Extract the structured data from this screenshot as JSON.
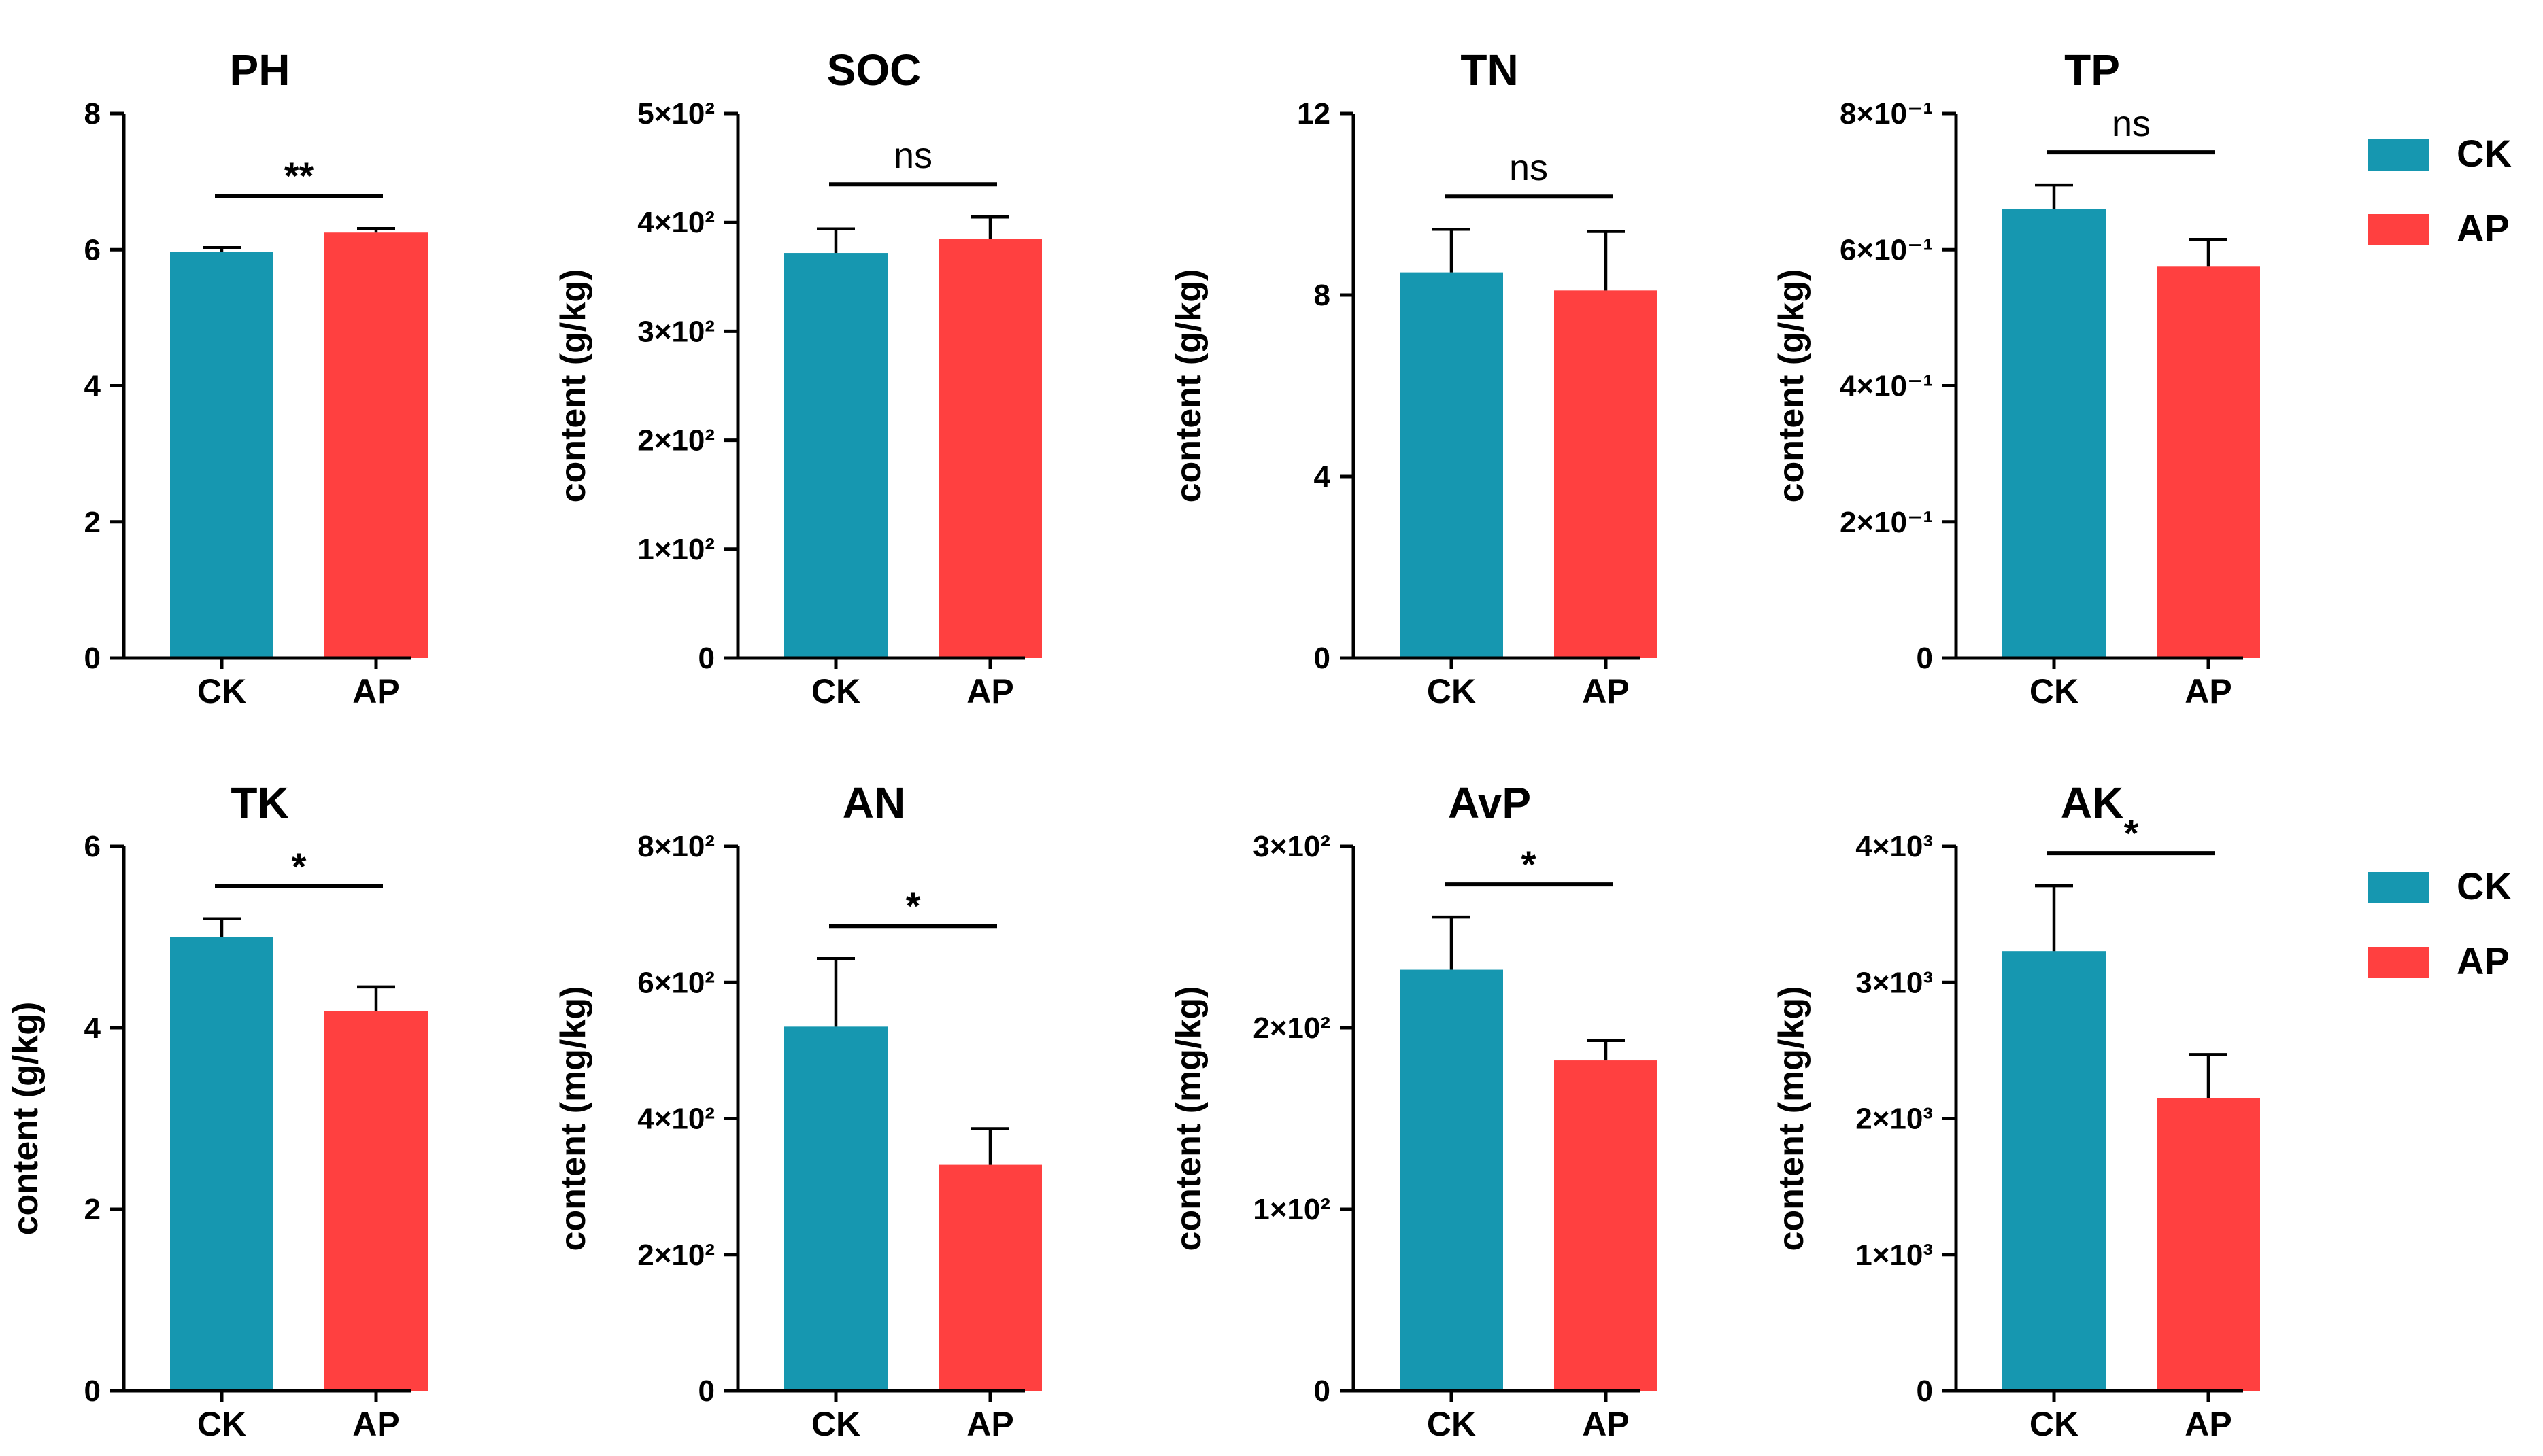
{
  "chart_data": [
    {
      "type": "bar",
      "title": "PH",
      "ylabel": "",
      "categories": [
        "CK",
        "AP"
      ],
      "values": [
        5.97,
        6.25
      ],
      "errors": [
        0.06,
        0.06
      ],
      "ylim": [
        0,
        8
      ],
      "yticks": [
        0,
        2,
        4,
        6,
        8
      ],
      "ytick_labels": [
        "0",
        "2",
        "4",
        "6",
        "8"
      ],
      "significance": "**"
    },
    {
      "type": "bar",
      "title": "SOC",
      "ylabel": "content (g/kg)",
      "categories": [
        "CK",
        "AP"
      ],
      "values": [
        372,
        385
      ],
      "errors": [
        22,
        20
      ],
      "ylim": [
        0,
        500
      ],
      "yticks": [
        0,
        100,
        200,
        300,
        400,
        500
      ],
      "ytick_labels": [
        "0",
        "1×10²",
        "2×10²",
        "3×10²",
        "4×10²",
        "5×10²"
      ],
      "significance": "ns"
    },
    {
      "type": "bar",
      "title": "TN",
      "ylabel": "content (g/kg)",
      "categories": [
        "CK",
        "AP"
      ],
      "values": [
        8.5,
        8.1
      ],
      "errors": [
        0.95,
        1.3
      ],
      "ylim": [
        0,
        12
      ],
      "yticks": [
        0,
        4,
        8,
        12
      ],
      "ytick_labels": [
        "0",
        "4",
        "8",
        "12"
      ],
      "significance": "ns"
    },
    {
      "type": "bar",
      "title": "TP",
      "ylabel": "content (g/kg)",
      "categories": [
        "CK",
        "AP"
      ],
      "values": [
        0.66,
        0.575
      ],
      "errors": [
        0.035,
        0.04
      ],
      "ylim": [
        0,
        0.8
      ],
      "yticks": [
        0,
        0.2,
        0.4,
        0.6,
        0.8
      ],
      "ytick_labels": [
        "0",
        "2×10⁻¹",
        "4×10⁻¹",
        "6×10⁻¹",
        "8×10⁻¹"
      ],
      "significance": "ns"
    },
    {
      "type": "bar",
      "title": "TK",
      "ylabel": "content (g/kg)",
      "categories": [
        "CK",
        "AP"
      ],
      "values": [
        5.0,
        4.18
      ],
      "errors": [
        0.2,
        0.27
      ],
      "ylim": [
        0,
        6
      ],
      "yticks": [
        0,
        2,
        4,
        6
      ],
      "ytick_labels": [
        "0",
        "2",
        "4",
        "6"
      ],
      "significance": "*"
    },
    {
      "type": "bar",
      "title": "AN",
      "ylabel": "content (mg/kg)",
      "categories": [
        "CK",
        "AP"
      ],
      "values": [
        535,
        332
      ],
      "errors": [
        100,
        53
      ],
      "ylim": [
        0,
        800
      ],
      "yticks": [
        0,
        200,
        400,
        600,
        800
      ],
      "ytick_labels": [
        "0",
        "2×10²",
        "4×10²",
        "6×10²",
        "8×10²"
      ],
      "significance": "*"
    },
    {
      "type": "bar",
      "title": "AvP",
      "ylabel": "content (mg/kg)",
      "categories": [
        "CK",
        "AP"
      ],
      "values": [
        232,
        182
      ],
      "errors": [
        29,
        11
      ],
      "ylim": [
        0,
        300
      ],
      "yticks": [
        0,
        100,
        200,
        300
      ],
      "ytick_labels": [
        "0",
        "1×10²",
        "2×10²",
        "3×10²"
      ],
      "significance": "*"
    },
    {
      "type": "bar",
      "title": "AK",
      "ylabel": "content (mg/kg)",
      "categories": [
        "CK",
        "AP"
      ],
      "values": [
        3230,
        2150
      ],
      "errors": [
        480,
        320
      ],
      "ylim": [
        0,
        4000
      ],
      "yticks": [
        0,
        1000,
        2000,
        3000,
        4000
      ],
      "ytick_labels": [
        "0",
        "1×10³",
        "2×10³",
        "3×10³",
        "4×10³"
      ],
      "significance": "*"
    }
  ],
  "legend": [
    {
      "label": "CK",
      "color": "#1697B0"
    },
    {
      "label": "AP",
      "color": "#FF4040"
    }
  ],
  "colors": {
    "CK": "#1697B0",
    "AP": "#FF4040"
  }
}
